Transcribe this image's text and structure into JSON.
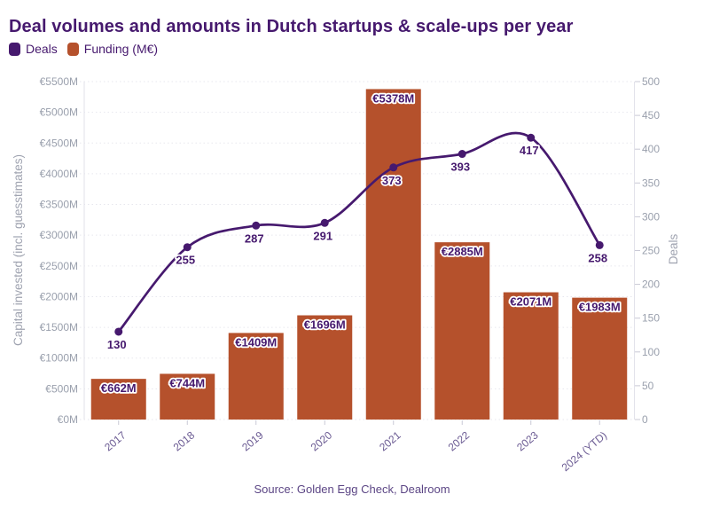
{
  "page": {
    "title": "Deal volumes and amounts in Dutch startups & scale-ups per year",
    "source": "Source: Golden Egg Check, Dealroom"
  },
  "legend": {
    "items": [
      {
        "label": "Deals",
        "color": "#46196e"
      },
      {
        "label": "Funding (M€)",
        "color": "#b5512c"
      }
    ]
  },
  "colors": {
    "purple": "#46196e",
    "bar": "#b5512c",
    "line": "#46196e",
    "value_label": "#46196e",
    "axis_tick": "#9aa0ad",
    "axis_title": "#9fa3b0",
    "x_label": "#6b5b93",
    "source": "#5c4685",
    "grid": "#e7e7ee",
    "axis_edge": "#e2e2ea",
    "tick_mark": "#c9c9d5"
  },
  "chart_data": {
    "type": "bar+line combo",
    "categories": [
      "2017",
      "2018",
      "2019",
      "2020",
      "2021",
      "2022",
      "2023",
      "2024 (YTD)"
    ],
    "series": [
      {
        "name": "Funding (M€)",
        "type": "bar",
        "axis": "left",
        "color": "#b5512c",
        "values": [
          662,
          744,
          1409,
          1696,
          5378,
          2885,
          2071,
          1983
        ],
        "labels": [
          "€662M",
          "€744M",
          "€1409M",
          "€1696M",
          "€5378M",
          "€2885M",
          "€2071M",
          "€1983M"
        ]
      },
      {
        "name": "Deals",
        "type": "line",
        "axis": "right",
        "color": "#46196e",
        "values": [
          130,
          255,
          287,
          291,
          373,
          393,
          417,
          258
        ],
        "labels": [
          "130",
          "255",
          "287",
          "291",
          "373",
          "393",
          "417",
          "258"
        ]
      }
    ],
    "left_axis": {
      "title": "Capital invested (incl. guesstimates)",
      "min": 0,
      "max": 5500,
      "step": 500,
      "tick_labels": [
        "€0M",
        "€500M",
        "€1000M",
        "€1500M",
        "€2000M",
        "€2500M",
        "€3000M",
        "€3500M",
        "€4000M",
        "€4500M",
        "€5000M",
        "€5500M"
      ]
    },
    "right_axis": {
      "title": "Deals",
      "min": 0,
      "max": 500,
      "step": 50,
      "tick_labels": [
        "0",
        "50",
        "100",
        "150",
        "200",
        "250",
        "300",
        "350",
        "400",
        "450",
        "500"
      ]
    },
    "grid": "horizontal dotted",
    "legend_position": "top-left"
  }
}
